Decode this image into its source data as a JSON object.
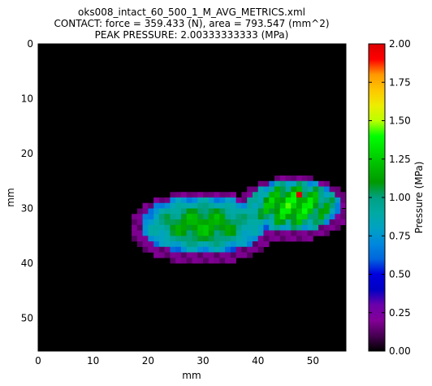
{
  "chart_data": {
    "type": "heatmap",
    "title_lines": [
      "oks008_intact_60_500_1_M_AVG_METRICS.xml",
      "CONTACT: force = 359.433 (N), area = 793.547 (mm^2)",
      "PEAK PRESSURE: 2.00333333333 (MPa)"
    ],
    "xlabel": "mm",
    "ylabel": "mm",
    "xlim": [
      0,
      56
    ],
    "ylim": [
      56,
      0
    ],
    "xticks": [
      "0",
      "10",
      "20",
      "30",
      "40",
      "50"
    ],
    "yticks": [
      "0",
      "10",
      "20",
      "30",
      "40",
      "50"
    ],
    "colorbar": {
      "label": "Pressure (MPa)",
      "range": [
        0.0,
        2.0
      ],
      "ticks": [
        "0.00",
        "0.25",
        "0.50",
        "0.75",
        "1.00",
        "1.25",
        "1.50",
        "1.75",
        "2.00"
      ],
      "colormap": "nipy_spectral"
    },
    "peak_cell": {
      "x": 47,
      "y": 27,
      "value": 2.0
    }
  }
}
